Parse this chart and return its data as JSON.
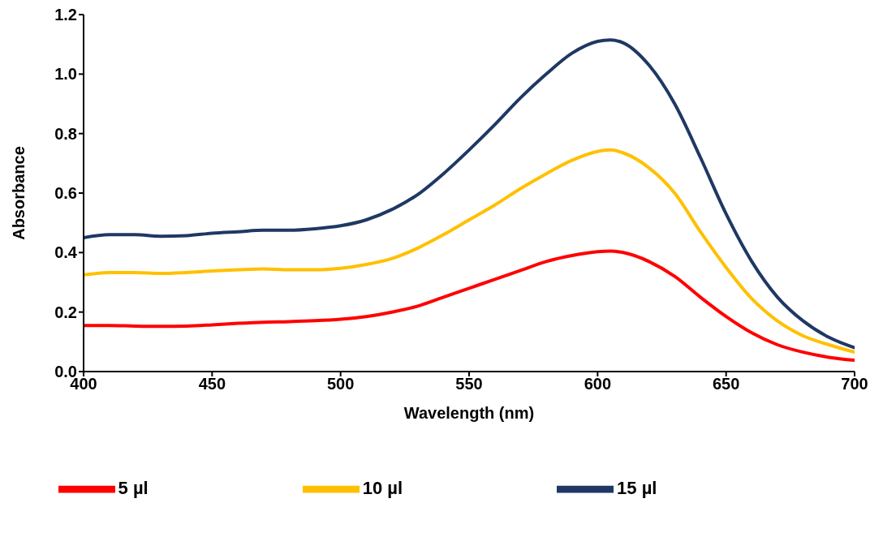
{
  "chart_data": {
    "type": "line",
    "xlabel": "Wavelength (nm)",
    "ylabel": "Absorbance",
    "x": [
      400,
      410,
      420,
      430,
      440,
      450,
      460,
      470,
      480,
      490,
      500,
      510,
      520,
      530,
      540,
      550,
      560,
      570,
      580,
      590,
      600,
      605,
      610,
      620,
      630,
      640,
      650,
      660,
      670,
      680,
      690,
      700
    ],
    "series": [
      {
        "name": "5 µl",
        "color": "#ff0000",
        "values": [
          0.155,
          0.155,
          0.153,
          0.152,
          0.153,
          0.157,
          0.162,
          0.166,
          0.168,
          0.171,
          0.176,
          0.185,
          0.2,
          0.22,
          0.25,
          0.28,
          0.31,
          0.34,
          0.37,
          0.39,
          0.403,
          0.405,
          0.4,
          0.37,
          0.32,
          0.25,
          0.185,
          0.13,
          0.09,
          0.065,
          0.048,
          0.038
        ]
      },
      {
        "name": "10 µl",
        "color": "#ffc000",
        "values": [
          0.325,
          0.333,
          0.333,
          0.33,
          0.333,
          0.338,
          0.342,
          0.345,
          0.342,
          0.342,
          0.347,
          0.36,
          0.38,
          0.415,
          0.46,
          0.51,
          0.56,
          0.615,
          0.665,
          0.71,
          0.74,
          0.745,
          0.735,
          0.685,
          0.6,
          0.47,
          0.35,
          0.245,
          0.17,
          0.12,
          0.09,
          0.065
        ]
      },
      {
        "name": "15 µl",
        "color": "#1f3864",
        "values": [
          0.45,
          0.46,
          0.46,
          0.455,
          0.457,
          0.465,
          0.47,
          0.475,
          0.475,
          0.48,
          0.49,
          0.51,
          0.545,
          0.595,
          0.665,
          0.745,
          0.83,
          0.92,
          1.0,
          1.07,
          1.11,
          1.115,
          1.105,
          1.03,
          0.9,
          0.72,
          0.53,
          0.37,
          0.25,
          0.17,
          0.115,
          0.08
        ]
      }
    ],
    "xlim": [
      400,
      700
    ],
    "xticks": [
      400,
      450,
      500,
      550,
      600,
      650,
      700
    ],
    "ylim": [
      0,
      1.2
    ],
    "yticks": [
      {
        "value": 0,
        "label": "0.0"
      },
      {
        "value": 0.2,
        "label": "0.2"
      },
      {
        "value": 0.4,
        "label": "0.4"
      },
      {
        "value": 0.6,
        "label": "0.6"
      },
      {
        "value": 0.8,
        "label": "0.8"
      },
      {
        "value": 1,
        "label": "1.0"
      },
      {
        "value": 1.2,
        "label": "1.2"
      }
    ],
    "grid": false,
    "legend": "bottom",
    "marker": "none",
    "line_style": "solid"
  }
}
